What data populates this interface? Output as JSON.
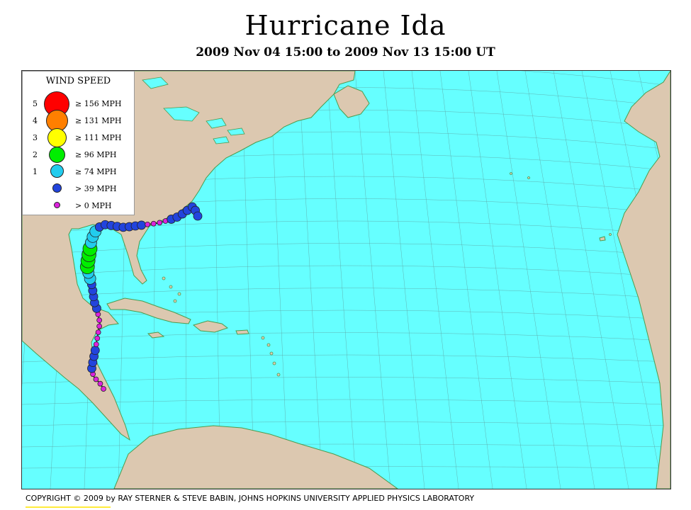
{
  "title": "Hurricane Ida",
  "subtitle": "2009 Nov 04 15:00 to 2009 Nov 13 15:00 UT",
  "legend": {
    "title": "WIND SPEED",
    "items": [
      {
        "category": "5",
        "label": "≥ 156 MPH",
        "color": "#ff0000"
      },
      {
        "category": "4",
        "label": "≥ 131 MPH",
        "color": "#ff7f00"
      },
      {
        "category": "3",
        "label": "≥ 111 MPH",
        "color": "#ffff00"
      },
      {
        "category": "2",
        "label": "≥ 96 MPH",
        "color": "#00ee00"
      },
      {
        "category": "1",
        "label": "≥ 74 MPH",
        "color": "#22ccee"
      },
      {
        "category": "",
        "label": "> 39 MPH",
        "color": "#2244dd"
      },
      {
        "category": "",
        "label": "> 0 MPH",
        "color": "#dd22dd"
      }
    ]
  },
  "colors": {
    "ocean": "#66ffff",
    "land": "#dcc8b0",
    "coast": "#4e9a4e",
    "grid": "#555555"
  },
  "track_intensity_sequence": [
    "> 0 MPH",
    "> 0 MPH",
    "> 0 MPH",
    "> 0 MPH",
    "> 39 MPH",
    "> 39 MPH",
    "> 39 MPH",
    "> 39 MPH",
    "> 0 MPH",
    "> 0 MPH",
    "> 0 MPH",
    "> 0 MPH",
    "> 0 MPH",
    "> 0 MPH",
    "> 39 MPH",
    "> 39 MPH",
    "> 39 MPH",
    "> 39 MPH",
    "> 39 MPH",
    "≥ 74 MPH",
    "≥ 74 MPH",
    "≥ 96 MPH",
    "≥ 96 MPH",
    "≥ 96 MPH",
    "≥ 96 MPH",
    "≥ 74 MPH",
    "≥ 74 MPH",
    "≥ 74 MPH",
    "> 39 MPH",
    "> 39 MPH",
    "> 39 MPH",
    "> 39 MPH",
    "> 39 MPH",
    "> 39 MPH",
    "> 39 MPH",
    "> 39 MPH",
    "> 0 MPH",
    "> 0 MPH",
    "> 0 MPH",
    "> 0 MPH",
    "> 39 MPH",
    "> 39 MPH",
    "> 39 MPH",
    "> 39 MPH",
    "> 39 MPH",
    "> 39 MPH",
    "> 39 MPH"
  ],
  "copyright": "COPYRIGHT © 2009 by RAY STERNER & STEVE BABIN, JOHNS HOPKINS UNIVERSITY APPLIED PHYSICS LABORATORY"
}
